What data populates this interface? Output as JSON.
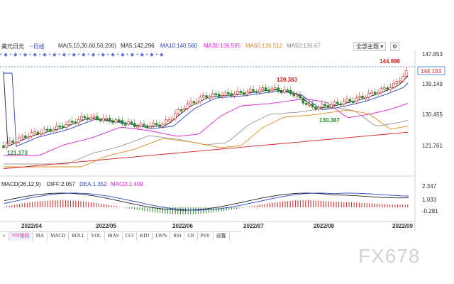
{
  "header": {
    "symbol": "美元日元",
    "period": "~日线",
    "ma_params": "MA(5,10,30,60,50,200)",
    "ma5": "MA5:142.296",
    "ma10": "MA10:140.560",
    "ma30": "MA30:136.595",
    "ma60": "MA60:136.512",
    "ma50": "MA50:136.67",
    "main_select": "全部主题",
    "colors": {
      "ma5": "#222222",
      "ma10": "#2b46c8",
      "ma30": "#e020d8",
      "ma60": "#e08a1e",
      "ma50": "#999999",
      "ma200": "#d02020"
    }
  },
  "price_axis": {
    "ticks": [
      "147.853",
      "139.149",
      "130.455",
      "121.761"
    ],
    "current": "144.153"
  },
  "annotations": {
    "high": "144.986",
    "mid_high": "139.383",
    "mid_low": "130.387",
    "low": "121.173"
  },
  "macd": {
    "label": "MACD(26,12,9)",
    "diff": "DIFF:2.057",
    "dea": "DEA:1.352",
    "macd": "MACD:1.409",
    "ticks": [
      "2.347",
      "1.033",
      "-0.281"
    ]
  },
  "dates": [
    "2022/04",
    "2022/05",
    "2022/06",
    "2022/07",
    "2022/08",
    "2022/09"
  ],
  "tabs": [
    "VIP指标",
    "MA",
    "MACD",
    "BOLL",
    "VOL",
    "BIAS",
    "CCI",
    "KDJ",
    "LW%",
    "RSI",
    "CR",
    "PSY",
    "设置"
  ],
  "watermark": "FX678"
}
